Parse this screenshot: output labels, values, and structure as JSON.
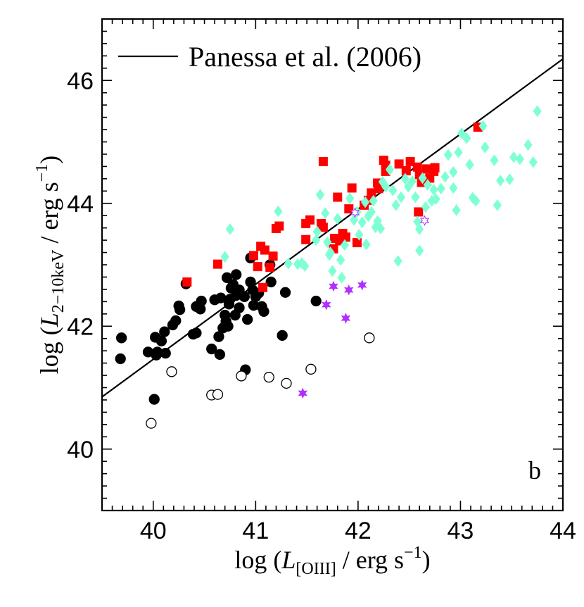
{
  "chart_data": {
    "type": "scatter",
    "xlabel": "log (L[OIII] / erg s^-1)",
    "ylabel": "log (L2-10keV / erg s^-1)",
    "xlabel_parts": {
      "prefix": "log (",
      "symbol": "L",
      "subscript": "[OIII]",
      "suffix": " / erg s",
      "exponent": "−1",
      "close": ")"
    },
    "ylabel_parts": {
      "prefix": "log (",
      "symbol": "L",
      "subscript": "2−10keV",
      "suffix": " / erg s",
      "exponent": "−1",
      "close": ")"
    },
    "xlim": [
      39.5,
      44.0
    ],
    "ylim": [
      39.0,
      47.0
    ],
    "xticks": [
      40,
      41,
      42,
      43,
      44
    ],
    "yticks": [
      40,
      42,
      44,
      46
    ],
    "xtick_labels": [
      "40",
      "41",
      "42",
      "43",
      "44"
    ],
    "ytick_labels": [
      "40",
      "42",
      "44",
      "46"
    ],
    "legend": {
      "label": "Panessa et al. (2006)",
      "position": "top-left"
    },
    "panel_label": "b",
    "fit_line": {
      "name": "Panessa et al. (2006)",
      "x": [
        39.5,
        44.0
      ],
      "y": [
        40.85,
        46.35
      ],
      "color": "#000000"
    },
    "series": [
      {
        "name": "filled-black-circles",
        "marker": "circle",
        "filled": true,
        "color": "#000000",
        "points": [
          [
            39.69,
            41.81
          ],
          [
            39.68,
            41.47
          ],
          [
            39.95,
            41.58
          ],
          [
            40.04,
            41.58
          ],
          [
            40.02,
            41.82
          ],
          [
            40.03,
            41.53
          ],
          [
            40.08,
            41.76
          ],
          [
            40.11,
            41.91
          ],
          [
            40.12,
            41.56
          ],
          [
            40.19,
            42.02
          ],
          [
            40.22,
            42.09
          ],
          [
            40.26,
            42.27
          ],
          [
            40.25,
            42.33
          ],
          [
            40.32,
            42.69
          ],
          [
            40.42,
            42.32
          ],
          [
            40.46,
            42.28
          ],
          [
            40.47,
            42.41
          ],
          [
            40.39,
            41.87
          ],
          [
            40.42,
            41.89
          ],
          [
            40.01,
            40.81
          ],
          [
            40.57,
            41.63
          ],
          [
            40.6,
            42.43
          ],
          [
            40.64,
            41.83
          ],
          [
            40.65,
            41.54
          ],
          [
            40.66,
            42.46
          ],
          [
            40.7,
            42.18
          ],
          [
            40.71,
            42.08
          ],
          [
            40.73,
            42.0
          ],
          [
            40.72,
            42.79
          ],
          [
            40.76,
            42.62
          ],
          [
            40.78,
            42.68
          ],
          [
            40.75,
            42.44
          ],
          [
            40.74,
            42.36
          ],
          [
            40.81,
            42.5
          ],
          [
            40.81,
            42.84
          ],
          [
            40.84,
            42.59
          ],
          [
            40.84,
            42.3
          ],
          [
            40.89,
            42.48
          ],
          [
            40.9,
            41.29
          ],
          [
            40.92,
            42.11
          ],
          [
            40.97,
            42.59
          ],
          [
            40.95,
            42.72
          ],
          [
            40.98,
            42.34
          ],
          [
            41.0,
            42.48
          ],
          [
            41.03,
            42.54
          ],
          [
            41.06,
            42.32
          ],
          [
            41.08,
            42.24
          ],
          [
            41.14,
            43.0
          ],
          [
            41.15,
            42.72
          ],
          [
            41.26,
            41.85
          ],
          [
            41.29,
            42.55
          ],
          [
            40.95,
            43.11
          ],
          [
            41.59,
            42.41
          ],
          [
            40.8,
            42.18
          ],
          [
            40.68,
            41.97
          ]
        ]
      },
      {
        "name": "open-circles",
        "marker": "circle",
        "filled": false,
        "color": "#000000",
        "points": [
          [
            39.98,
            40.42
          ],
          [
            40.18,
            41.26
          ],
          [
            40.57,
            40.88
          ],
          [
            40.63,
            40.89
          ],
          [
            40.86,
            41.19
          ],
          [
            41.13,
            41.17
          ],
          [
            41.3,
            41.07
          ],
          [
            41.54,
            41.3
          ],
          [
            42.11,
            41.81
          ]
        ]
      },
      {
        "name": "red-squares",
        "marker": "square",
        "filled": true,
        "color": "#ff0000",
        "points": [
          [
            40.33,
            42.72
          ],
          [
            40.63,
            43.01
          ],
          [
            40.98,
            43.15
          ],
          [
            41.02,
            42.97
          ],
          [
            41.05,
            43.3
          ],
          [
            41.07,
            42.63
          ],
          [
            41.09,
            43.24
          ],
          [
            41.14,
            42.96
          ],
          [
            41.17,
            43.14
          ],
          [
            41.2,
            43.59
          ],
          [
            41.23,
            43.63
          ],
          [
            41.49,
            43.41
          ],
          [
            41.49,
            43.67
          ],
          [
            41.53,
            43.73
          ],
          [
            41.64,
            43.67
          ],
          [
            41.66,
            43.61
          ],
          [
            41.66,
            44.68
          ],
          [
            41.76,
            43.26
          ],
          [
            41.77,
            43.43
          ],
          [
            41.8,
            44.1
          ],
          [
            41.85,
            43.51
          ],
          [
            41.88,
            43.45
          ],
          [
            41.91,
            43.91
          ],
          [
            41.94,
            44.25
          ],
          [
            41.99,
            43.36
          ],
          [
            42.06,
            43.97
          ],
          [
            42.1,
            44.05
          ],
          [
            42.13,
            44.17
          ],
          [
            42.19,
            44.33
          ],
          [
            42.2,
            44.24
          ],
          [
            42.25,
            44.7
          ],
          [
            42.27,
            44.62
          ],
          [
            42.27,
            44.52
          ],
          [
            42.4,
            44.64
          ],
          [
            42.47,
            44.53
          ],
          [
            42.51,
            44.68
          ],
          [
            42.58,
            44.59
          ],
          [
            42.59,
            43.86
          ],
          [
            42.6,
            44.47
          ],
          [
            42.62,
            44.34
          ],
          [
            42.67,
            44.56
          ],
          [
            42.7,
            44.41
          ],
          [
            42.74,
            44.52
          ],
          [
            42.75,
            44.58
          ],
          [
            43.17,
            45.24
          ],
          [
            41.82,
            43.39
          ]
        ]
      },
      {
        "name": "cyan-diamonds",
        "marker": "diamond",
        "filled": true,
        "color": "#7fffd4",
        "points": [
          [
            40.75,
            43.58
          ],
          [
            40.7,
            43.13
          ],
          [
            41.22,
            43.87
          ],
          [
            41.32,
            43.02
          ],
          [
            41.41,
            43.01
          ],
          [
            41.45,
            43.03
          ],
          [
            41.48,
            42.98
          ],
          [
            41.59,
            43.4
          ],
          [
            41.6,
            43.54
          ],
          [
            41.63,
            44.14
          ],
          [
            41.68,
            43.84
          ],
          [
            41.7,
            43.37
          ],
          [
            41.72,
            43.16
          ],
          [
            41.73,
            43.2
          ],
          [
            41.75,
            42.9
          ],
          [
            41.8,
            43.75
          ],
          [
            41.83,
            43.08
          ],
          [
            41.84,
            42.79
          ],
          [
            41.87,
            43.32
          ],
          [
            41.92,
            44.08
          ],
          [
            41.96,
            43.73
          ],
          [
            41.99,
            43.86
          ],
          [
            42.01,
            43.49
          ],
          [
            42.04,
            43.69
          ],
          [
            42.07,
            44.02
          ],
          [
            42.08,
            43.33
          ],
          [
            42.1,
            43.79
          ],
          [
            42.13,
            43.86
          ],
          [
            42.15,
            44.04
          ],
          [
            42.17,
            43.61
          ],
          [
            42.19,
            43.71
          ],
          [
            42.22,
            43.59
          ],
          [
            42.24,
            44.35
          ],
          [
            42.27,
            44.27
          ],
          [
            42.31,
            44.55
          ],
          [
            42.34,
            44.21
          ],
          [
            42.37,
            43.97
          ],
          [
            42.39,
            43.06
          ],
          [
            42.42,
            44.1
          ],
          [
            42.46,
            44.4
          ],
          [
            42.49,
            44.27
          ],
          [
            42.53,
            44.36
          ],
          [
            42.56,
            44.1
          ],
          [
            42.58,
            43.7
          ],
          [
            42.6,
            43.58
          ],
          [
            42.63,
            44.41
          ],
          [
            42.66,
            43.94
          ],
          [
            42.68,
            44.3
          ],
          [
            42.72,
            44.04
          ],
          [
            42.74,
            44.22
          ],
          [
            42.76,
            44.07
          ],
          [
            42.81,
            44.24
          ],
          [
            42.85,
            44.43
          ],
          [
            42.88,
            44.79
          ],
          [
            42.93,
            44.25
          ],
          [
            42.96,
            43.89
          ],
          [
            43.01,
            45.14
          ],
          [
            43.06,
            45.06
          ],
          [
            43.09,
            44.63
          ],
          [
            43.12,
            44.09
          ],
          [
            43.15,
            44.04
          ],
          [
            43.22,
            45.26
          ],
          [
            43.24,
            44.91
          ],
          [
            43.33,
            44.7
          ],
          [
            43.36,
            43.97
          ],
          [
            43.39,
            44.37
          ],
          [
            43.48,
            44.39
          ],
          [
            43.52,
            44.75
          ],
          [
            43.58,
            44.72
          ],
          [
            43.66,
            44.95
          ],
          [
            43.71,
            44.67
          ],
          [
            43.75,
            45.5
          ],
          [
            42.6,
            43.23
          ],
          [
            42.93,
            44.51
          ],
          [
            42.98,
            44.83
          ]
        ]
      },
      {
        "name": "purple-stars",
        "marker": "star",
        "filled": true,
        "color": "#b030ff",
        "points": [
          [
            41.46,
            40.91
          ],
          [
            41.69,
            42.35
          ],
          [
            41.76,
            42.65
          ],
          [
            41.88,
            42.13
          ],
          [
            41.91,
            42.59
          ],
          [
            42.04,
            42.67
          ]
        ]
      },
      {
        "name": "open-purple-stars",
        "marker": "star",
        "filled": false,
        "color": "#b030ff",
        "points": [
          [
            41.97,
            43.85
          ],
          [
            42.65,
            43.72
          ]
        ]
      }
    ]
  }
}
